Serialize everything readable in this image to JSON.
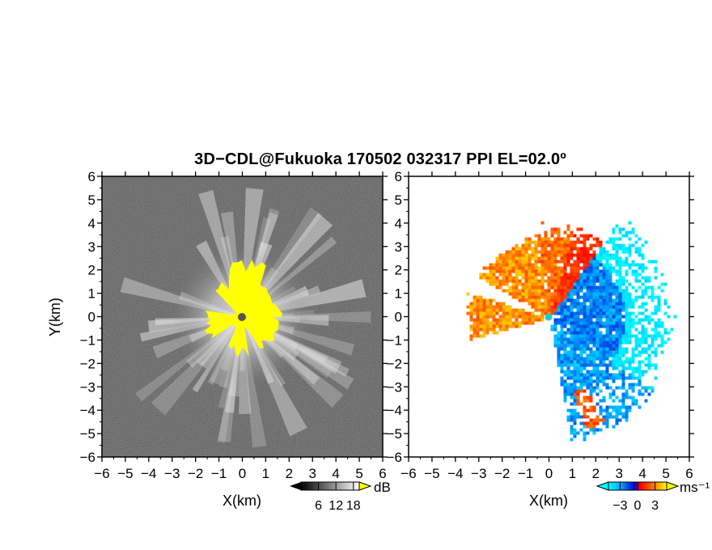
{
  "title": "3D−CDL@Fukuoka 170502 032317 PPI EL=02.0º",
  "chart_data": [
    {
      "type": "heatmap",
      "panel": "left",
      "variable": "SNR",
      "xlabel": "X(km)",
      "ylabel": "Y(km)",
      "xlim": [
        -6,
        6
      ],
      "ylim": [
        -6,
        6
      ],
      "xticks": [
        "−6",
        "−5",
        "−4",
        "−3",
        "−2",
        "−1",
        "0",
        "1",
        "2",
        "3",
        "4",
        "5",
        "6"
      ],
      "yticks": [
        "6",
        "5",
        "4",
        "3",
        "2",
        "1",
        "0",
        "−1",
        "−2",
        "−3",
        "−4",
        "−5",
        "−6"
      ],
      "colorbar": {
        "label": "dB",
        "ticks": [
          "6",
          "12",
          "18"
        ],
        "range": [
          0,
          20
        ],
        "overflow_color": "#ffff00",
        "colormap": "grayscale"
      },
      "grid": false
    },
    {
      "type": "heatmap",
      "panel": "right",
      "variable": "Doppler velocity",
      "xlabel": "X(km)",
      "xlim": [
        -6,
        6
      ],
      "ylim": [
        -6,
        6
      ],
      "xticks": [
        "−6",
        "−5",
        "−4",
        "−3",
        "−2",
        "−1",
        "0",
        "1",
        "2",
        "3",
        "4",
        "5",
        "6"
      ],
      "yticks": [
        "6",
        "5",
        "4",
        "3",
        "2",
        "1",
        "0",
        "−1",
        "−2",
        "−3",
        "−4",
        "−5",
        "−6"
      ],
      "colorbar": {
        "label": "ms⁻¹",
        "ticks": [
          "−3",
          "0",
          "3"
        ],
        "range": [
          -5,
          5
        ],
        "colormap": [
          "#00ffff",
          "#0088ff",
          "#0000cc",
          "#ff0000",
          "#ff8800",
          "#ffff00"
        ]
      },
      "grid": false
    }
  ]
}
